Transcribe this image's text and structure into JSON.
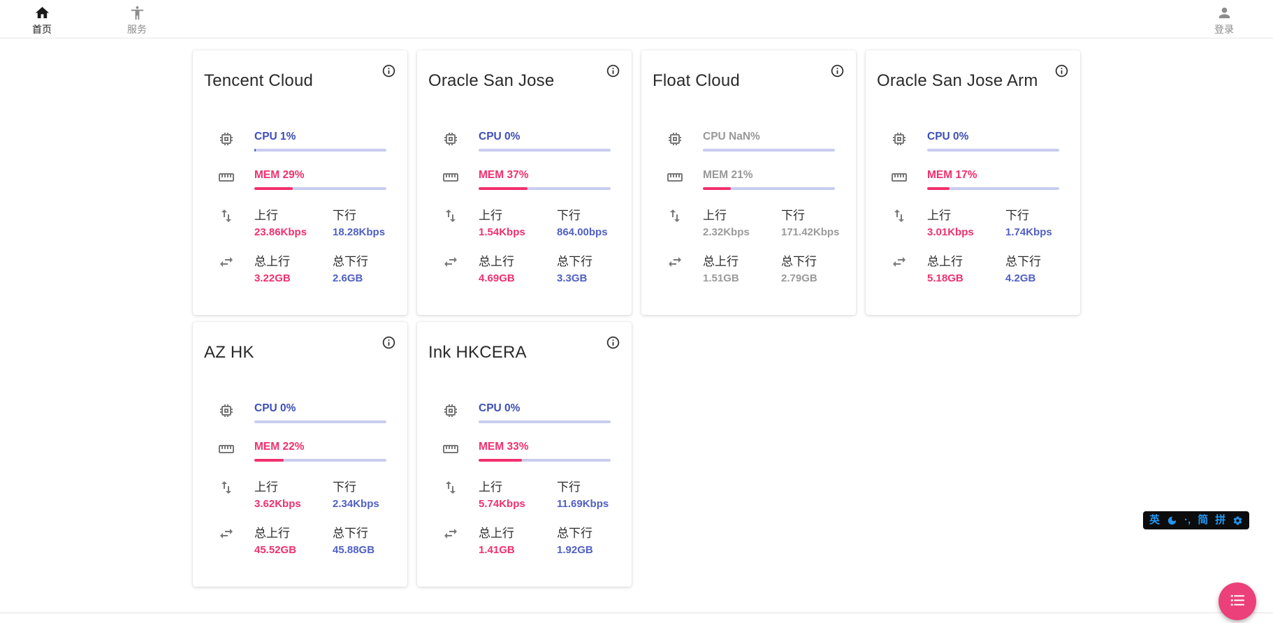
{
  "app_bar": {
    "home": {
      "label": "首页"
    },
    "services": {
      "label": "服务"
    },
    "login": {
      "label": "登录"
    }
  },
  "labels": {
    "up": "上行",
    "down": "下行",
    "total_up": "总上行",
    "total_down": "总下行"
  },
  "servers": [
    {
      "name": "Tencent Cloud",
      "cpu_text": "CPU 1%",
      "cpu_pct": 1,
      "mem_text": "MEM 29%",
      "mem_pct": 29,
      "net_up": "23.86Kbps",
      "net_down": "18.28Kbps",
      "total_up": "3.22GB",
      "total_down": "2.6GB",
      "muted": false
    },
    {
      "name": "Oracle San Jose",
      "cpu_text": "CPU 0%",
      "cpu_pct": 0,
      "mem_text": "MEM 37%",
      "mem_pct": 37,
      "net_up": "1.54Kbps",
      "net_down": "864.00bps",
      "total_up": "4.69GB",
      "total_down": "3.3GB",
      "muted": false
    },
    {
      "name": "Float Cloud",
      "cpu_text": "CPU NaN%",
      "cpu_pct": 0,
      "mem_text": "MEM 21%",
      "mem_pct": 21,
      "net_up": "2.32Kbps",
      "net_down": "171.42Kbps",
      "total_up": "1.51GB",
      "total_down": "2.79GB",
      "muted": true
    },
    {
      "name": "Oracle San Jose Arm",
      "cpu_text": "CPU 0%",
      "cpu_pct": 0,
      "mem_text": "MEM 17%",
      "mem_pct": 17,
      "net_up": "3.01Kbps",
      "net_down": "1.74Kbps",
      "total_up": "5.18GB",
      "total_down": "4.2GB",
      "muted": false
    },
    {
      "name": "AZ HK",
      "cpu_text": "CPU 0%",
      "cpu_pct": 0,
      "mem_text": "MEM 22%",
      "mem_pct": 22,
      "net_up": "3.62Kbps",
      "net_down": "2.34Kbps",
      "total_up": "45.52GB",
      "total_down": "45.88GB",
      "muted": false
    },
    {
      "name": "Ink HKCERA",
      "cpu_text": "CPU 0%",
      "cpu_pct": 0,
      "mem_text": "MEM 33%",
      "mem_pct": 33,
      "net_up": "5.74Kbps",
      "net_down": "11.69Kbps",
      "total_up": "1.41GB",
      "total_down": "1.92GB",
      "muted": false
    }
  ],
  "ime_bar": {
    "lang": "英",
    "punct": "·,",
    "simplified": "简",
    "pinyin": "拼"
  },
  "colors": {
    "cpu_blue": "#3d4eb8",
    "mem_pink": "#f1306e",
    "value_down_blue": "#5060c3",
    "muted_gray": "#9a9a9a",
    "track": "#c8cdf0",
    "fab_pink": "#ec407a",
    "ime_blue": "#2196f3"
  }
}
